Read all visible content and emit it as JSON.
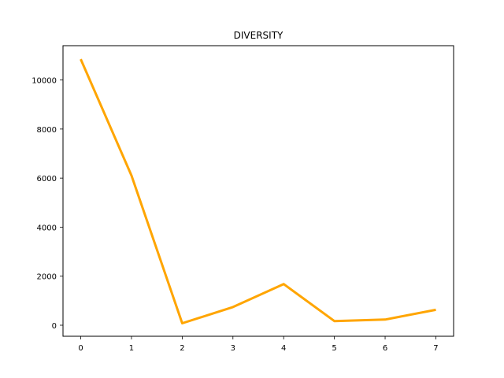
{
  "chart_data": {
    "type": "line",
    "title": "DIVERSITY",
    "xlabel": "",
    "ylabel": "",
    "x": [
      0,
      1,
      2,
      3,
      4,
      5,
      6,
      7
    ],
    "series": [
      {
        "values": [
          10850,
          6100,
          80,
          740,
          1680,
          170,
          230,
          630
        ],
        "color": "#ffa500"
      }
    ],
    "xlim": [
      -0.35,
      7.35
    ],
    "ylim": [
      -450,
      11400
    ],
    "xticks": [
      0,
      1,
      2,
      3,
      4,
      5,
      6,
      7
    ],
    "yticks": [
      0,
      2000,
      4000,
      6000,
      8000,
      10000
    ],
    "grid": false,
    "legend": "none"
  }
}
